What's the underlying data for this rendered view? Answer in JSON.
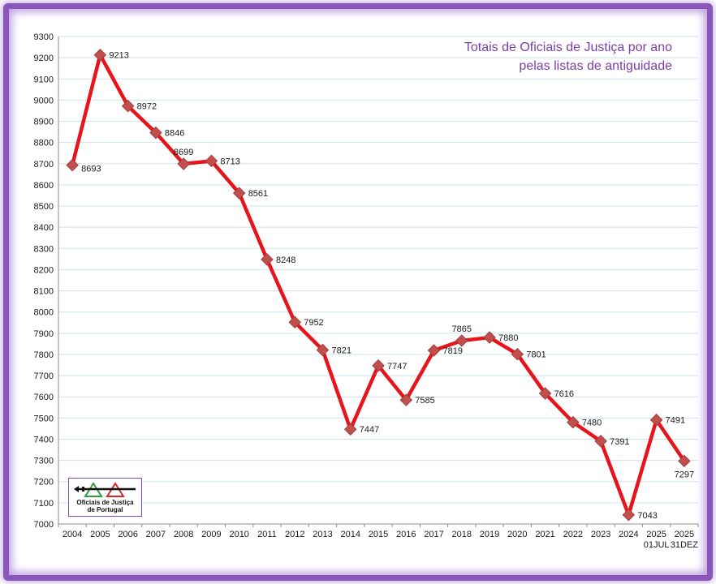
{
  "chart_data": {
    "type": "line",
    "title_lines": [
      "Totais de Oficiais de Justiça por ano",
      "pelas listas de antiguidade"
    ],
    "categories": [
      [
        "2004"
      ],
      [
        "2005"
      ],
      [
        "2006"
      ],
      [
        "2007"
      ],
      [
        "2008"
      ],
      [
        "2009"
      ],
      [
        "2010"
      ],
      [
        "2011"
      ],
      [
        "2012"
      ],
      [
        "2013"
      ],
      [
        "2014"
      ],
      [
        "2015"
      ],
      [
        "2016"
      ],
      [
        "2017"
      ],
      [
        "2018"
      ],
      [
        "2019"
      ],
      [
        "2020"
      ],
      [
        "2021"
      ],
      [
        "2022"
      ],
      [
        "2023"
      ],
      [
        "2024"
      ],
      [
        "2025",
        "01JUL"
      ],
      [
        "2025",
        "31DEZ"
      ]
    ],
    "values": [
      8693,
      9213,
      8972,
      8846,
      8699,
      8713,
      8561,
      8248,
      7952,
      7821,
      7447,
      7747,
      7585,
      7819,
      7865,
      7880,
      7801,
      7616,
      7480,
      7391,
      7043,
      7491,
      7297
    ],
    "ylim": [
      7000,
      9300
    ],
    "ytick_step": 100,
    "grid": true,
    "line_color": "#e8141b",
    "marker_color": "#c0504d",
    "title_color": "#7b3fa6",
    "label_placement": [
      "right",
      "right",
      "right",
      "right",
      "above",
      "right",
      "right",
      "right",
      "right",
      "right",
      "right",
      "right",
      "right",
      "right",
      "above",
      "right",
      "right",
      "right",
      "right",
      "right",
      "right",
      "right",
      "below"
    ]
  },
  "logo": {
    "text_line1": "Oficiais de Justiça",
    "text_line2": "de Portugal",
    "colors": [
      "#2e9e3e",
      "#d22a2a",
      "#111111"
    ]
  },
  "frame_color": "#8a57b8"
}
